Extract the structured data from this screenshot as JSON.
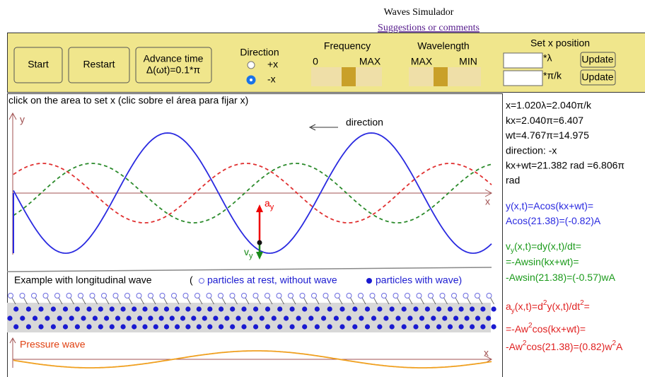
{
  "header": {
    "title": "Waves Simulador",
    "link": "Suggestions or comments"
  },
  "controls": {
    "buttons": [
      "Start",
      "Restart"
    ],
    "advance": [
      "Advance time",
      "Δ(ωt)=0.1*π"
    ],
    "direction": {
      "label": "Direction",
      "options": [
        "+x",
        "-x"
      ],
      "selected": 1
    },
    "frequency": {
      "label": "Frequency",
      "left": "0",
      "right": "MAX"
    },
    "wavelength": {
      "label": "Wavelength",
      "left": "MAX",
      "right": "MIN"
    },
    "set_x": {
      "label": "Set x position",
      "units": [
        "*λ",
        "*π/k"
      ],
      "buttons": [
        "Update",
        "Update"
      ]
    }
  },
  "canvas": {
    "instruction": "click on the area to set x (clic sobre el área para fijar x)",
    "y_label": "y",
    "x_label": "x",
    "direction": "direction",
    "a": [
      "a",
      "y"
    ],
    "v": [
      "v",
      "y"
    ],
    "longitudinal": {
      "title": "Example with longitudinal wave",
      "open": "(",
      "rest": "particles at rest, without wave",
      "moving": "particles with wave)"
    },
    "pressure": {
      "label": "Pressure wave",
      "x_label": "x"
    }
  },
  "info": {
    "lines": [
      "x=1.020λ=2.040π/k",
      "kx=2.040π=6.407",
      "wt=4.767π=14.975",
      "direction: -x",
      "kx+wt=21.382 rad =6.806π",
      "rad"
    ],
    "y": [
      [
        "y(x,t)=Acos(kx+wt)="
      ],
      [
        "Acos(21.38)=(-0.82)A"
      ]
    ],
    "v": [
      [
        "v",
        "y",
        "(x,t)=dy(x,t)/dt="
      ],
      [
        "=-Awsin(kx+wt)="
      ],
      [
        "-Awsin(21.38)=(-0.57)wA"
      ]
    ],
    "a": [
      [
        "a",
        "y",
        "(x,t)=d",
        "2",
        "y(x,t)/dt",
        "2",
        "="
      ],
      [
        "=-Aw",
        "2",
        "cos(kx+wt)="
      ],
      [
        "-Aw",
        "2",
        "cos(21.38)=(0.82)w",
        "2",
        "A"
      ]
    ]
  }
}
